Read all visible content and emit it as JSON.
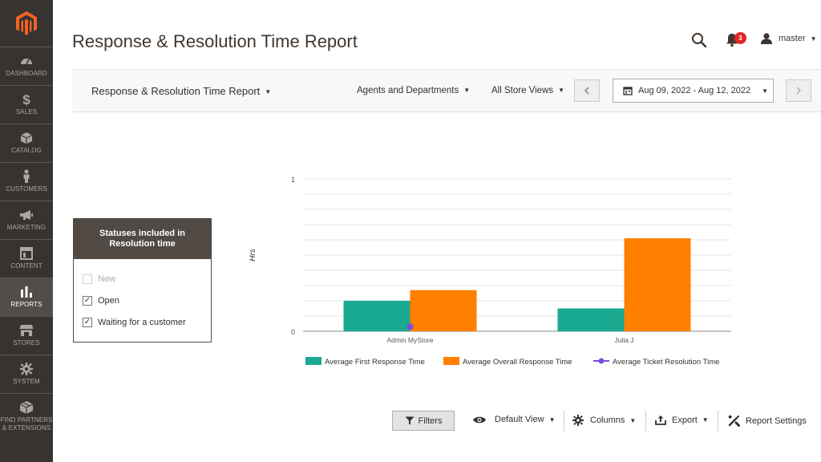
{
  "sidebar": {
    "items": [
      {
        "label": "DASHBOARD",
        "icon": "dashboard-icon"
      },
      {
        "label": "SALES",
        "icon": "dollar-icon"
      },
      {
        "label": "CATALOG",
        "icon": "box-icon"
      },
      {
        "label": "CUSTOMERS",
        "icon": "person-icon"
      },
      {
        "label": "MARKETING",
        "icon": "megaphone-icon"
      },
      {
        "label": "CONTENT",
        "icon": "layout-icon"
      },
      {
        "label": "REPORTS",
        "icon": "bar-chart-icon"
      },
      {
        "label": "STORES",
        "icon": "store-icon"
      },
      {
        "label": "SYSTEM",
        "icon": "gear-icon"
      },
      {
        "label": "FIND PARTNERS & EXTENSIONS",
        "icon": "cube-icon"
      }
    ]
  },
  "header": {
    "title": "Response & Resolution Time Report",
    "notifications_count": "3",
    "user": "master"
  },
  "toolbar": {
    "report_select": "Response & Resolution Time Report",
    "group_by": "Agents and Departments",
    "store_view": "All Store Views",
    "date_range": "Aug 09, 2022 - Aug 12, 2022"
  },
  "statuses": {
    "title": "Statuses included in Resolution time",
    "items": [
      {
        "label": "New",
        "checked": false,
        "disabled": true
      },
      {
        "label": "Open",
        "checked": true,
        "disabled": false
      },
      {
        "label": "Waiting for a customer",
        "checked": true,
        "disabled": false
      }
    ]
  },
  "chart_data": {
    "type": "bar",
    "categories": [
      "Admin MyStore",
      "Julia J"
    ],
    "ylabel": "Hrs",
    "ylim": [
      0,
      1
    ],
    "yticks": [
      "0",
      "1"
    ],
    "series": [
      {
        "name": "Average First Response Time",
        "kind": "bar",
        "color": "#1aaa91",
        "values": [
          0.2,
          0.15
        ]
      },
      {
        "name": "Average Overall Response Time",
        "kind": "bar",
        "color": "#ff7f00",
        "values": [
          0.27,
          0.61
        ]
      },
      {
        "name": "Average Ticket Resolution Time",
        "kind": "line",
        "color": "#7c4de0",
        "values": [
          0.03,
          null
        ]
      }
    ],
    "grid": true,
    "legend": "bottom"
  },
  "bottom_bar": {
    "filters": "Filters",
    "view": "Default View",
    "columns": "Columns",
    "export": "Export",
    "settings": "Report Settings"
  }
}
